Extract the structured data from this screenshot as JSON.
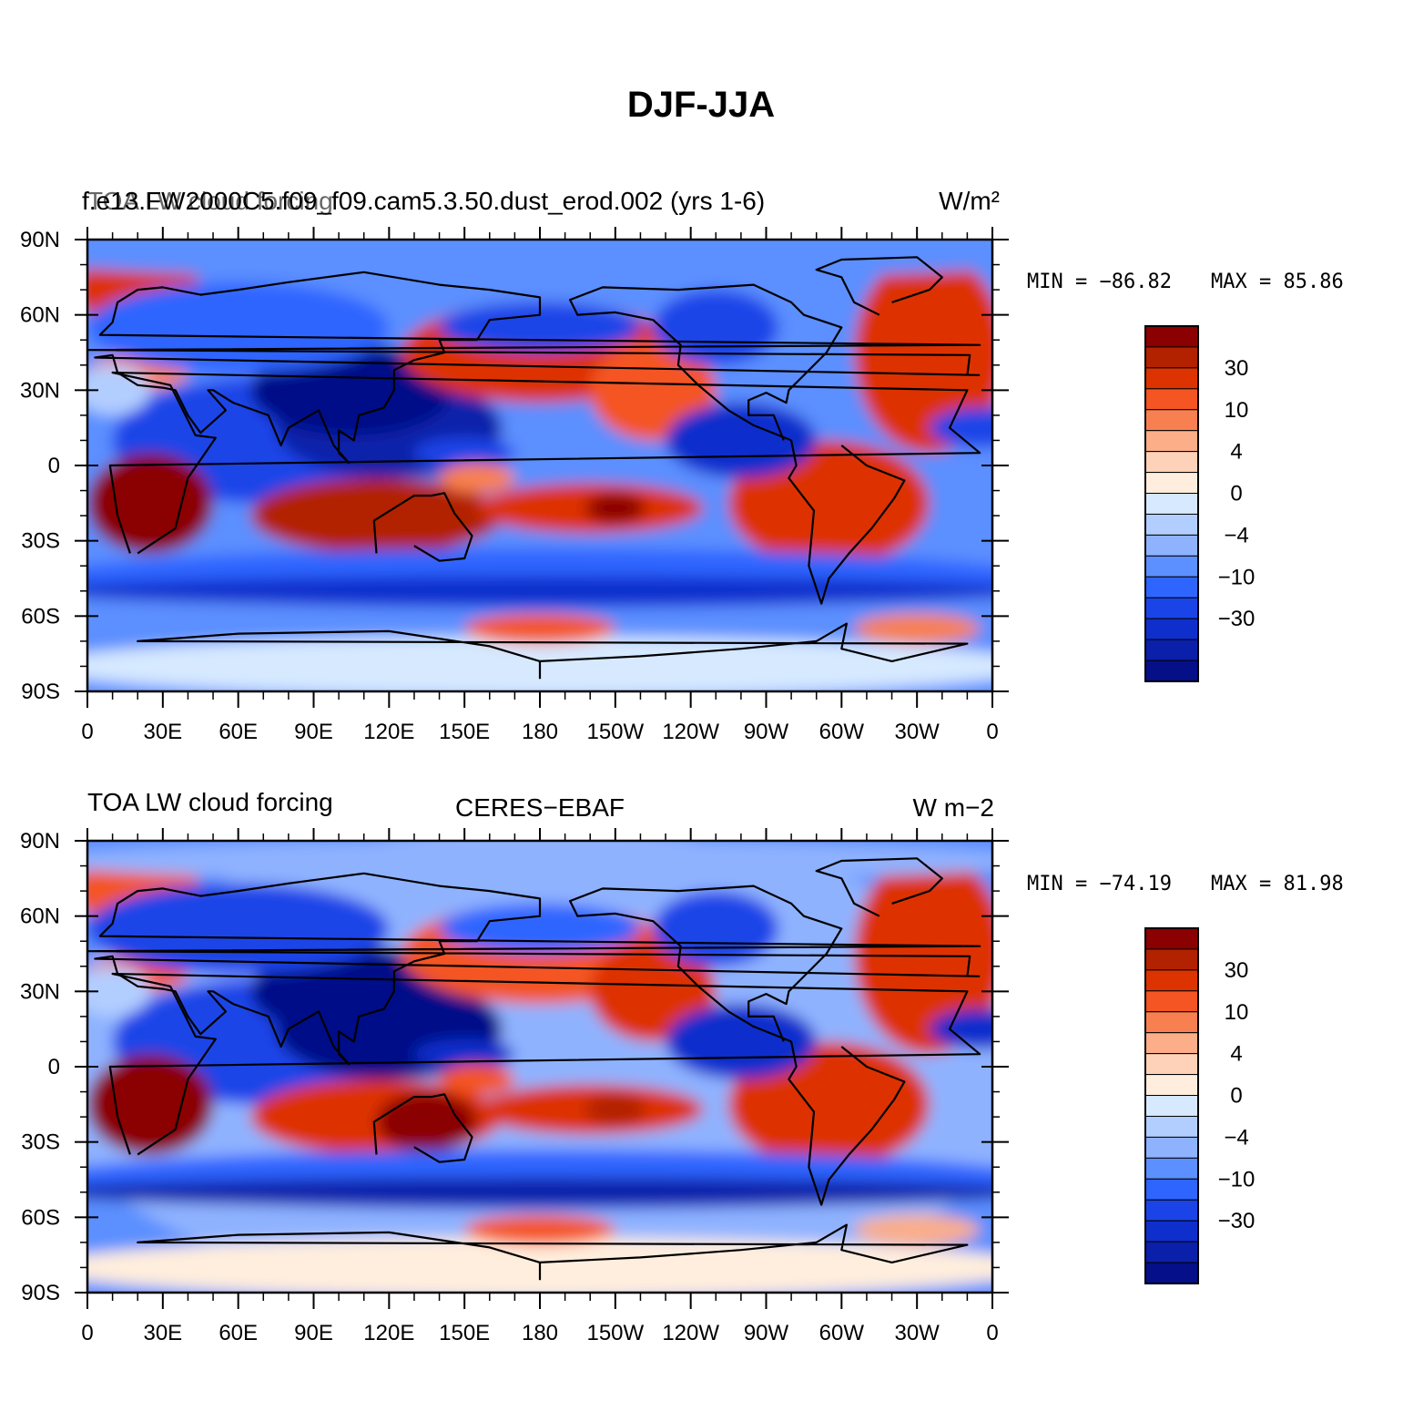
{
  "figure_title": "DJF-JJA",
  "chart_data": [
    {
      "type": "heatmap",
      "title_left": "f.e13.FW2000C5.f09_f09.cam5.3.50.dust_erod.002 (yrs 1-6)",
      "title_left_overlay": "TOA LW cloud forcing",
      "title_center": "",
      "title_right": "W/m²",
      "min_label": "MIN = −86.82",
      "max_label": "MAX =  85.86",
      "min": -86.82,
      "max": 85.86,
      "colorbar_labels": [
        "30",
        "10",
        "4",
        "0",
        "−4",
        "−10",
        "−30"
      ],
      "lat_ticks": [
        "90N",
        "60N",
        "30N",
        "0",
        "30S",
        "60S",
        "90S"
      ],
      "lon_ticks": [
        "0",
        "30E",
        "60E",
        "90E",
        "120E",
        "150E",
        "180",
        "150W",
        "120W",
        "90W",
        "60W",
        "30W",
        "0"
      ]
    },
    {
      "type": "heatmap",
      "title_left": "TOA LW cloud forcing",
      "title_left_overlay": "",
      "title_center": "CERES−EBAF",
      "title_right": "W m−2",
      "min_label": "MIN = −74.19",
      "max_label": "MAX =  81.98",
      "min": -74.19,
      "max": 81.98,
      "colorbar_labels": [
        "30",
        "10",
        "4",
        "0",
        "−4",
        "−10",
        "−30"
      ],
      "lat_ticks": [
        "90N",
        "60N",
        "30N",
        "0",
        "30S",
        "60S",
        "90S"
      ],
      "lon_ticks": [
        "0",
        "30E",
        "60E",
        "90E",
        "120E",
        "150E",
        "180",
        "150W",
        "120W",
        "90W",
        "60W",
        "30W",
        "0"
      ]
    }
  ],
  "colors": {
    "scale": [
      "#8b0000",
      "#b22200",
      "#dd3300",
      "#f45522",
      "#f88050",
      "#fbae88",
      "#fdd2b8",
      "#ffeedd",
      "#d6e9ff",
      "#b2ceff",
      "#8fb2ff",
      "#5c8fff",
      "#2f65ff",
      "#1a44e8",
      "#0f2fcc",
      "#0a20aa",
      "#050f88"
    ]
  }
}
